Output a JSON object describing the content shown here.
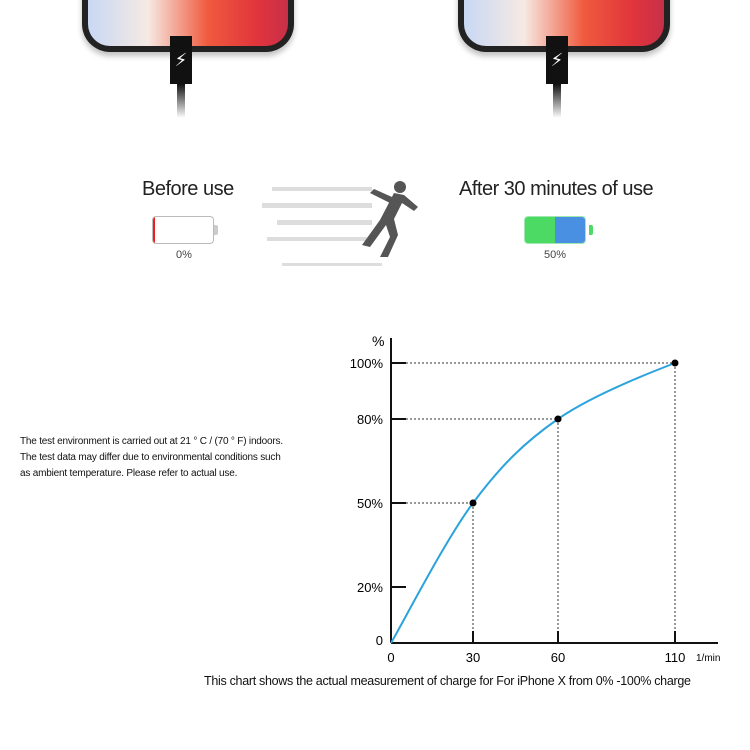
{
  "before": {
    "label": "Before use",
    "percent_text": "0%",
    "level": 0.03,
    "color": "#ee1c1c"
  },
  "after": {
    "label": "After 30 minutes of use",
    "percent_text": "50%",
    "level": 0.5,
    "colors": [
      "#4cd964",
      "#4a90e2"
    ]
  },
  "charger_icon": "lightning-bolt-icon",
  "note": {
    "lines": [
      "The test environment is carried out at 21 ° C / (70 ° F) indoors.",
      "The test data may differ due to environmental conditions such",
      "as ambient temperature. Please refer to actual use."
    ]
  },
  "chart_data": {
    "type": "line",
    "ylabel": "%",
    "xlabel": "1/min",
    "x": [
      0,
      30,
      60,
      110
    ],
    "y": [
      0,
      50,
      80,
      100
    ],
    "marked_points": [
      [
        30,
        50
      ],
      [
        60,
        80
      ],
      [
        110,
        100
      ]
    ],
    "x_ticks": [
      "0",
      "30",
      "60",
      "110"
    ],
    "y_ticks": [
      "0",
      "20%",
      "50%",
      "80%",
      "100%"
    ],
    "y_tick_values": [
      0,
      20,
      50,
      80,
      100
    ],
    "ylim": [
      0,
      100
    ],
    "line_color": "#2ba3dc",
    "grid": false,
    "caption": "This chart shows the actual measurement of charge for For iPhone X from 0% -100% charge"
  }
}
